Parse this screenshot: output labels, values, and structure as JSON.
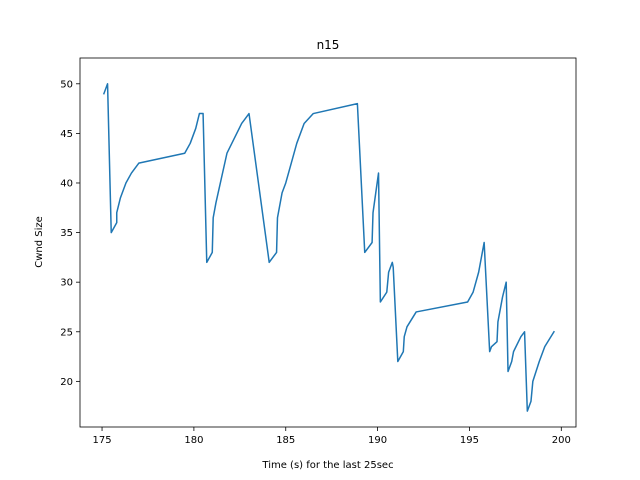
{
  "chart_data": {
    "type": "line",
    "title": "n15",
    "xlabel": "Time (s) for the last 25sec",
    "ylabel": "Cwnd Size",
    "xlim": [
      173.8,
      200.8
    ],
    "ylim": [
      15.4,
      52.6
    ],
    "xticks": [
      175,
      180,
      185,
      190,
      195,
      200
    ],
    "yticks": [
      20,
      25,
      30,
      35,
      40,
      45,
      50
    ],
    "grid": false,
    "series": [
      {
        "color": "#1f77b4",
        "x": [
          175.1,
          175.3,
          175.5,
          175.8,
          175.8,
          176.0,
          176.3,
          176.6,
          177.0,
          179.5,
          179.8,
          180.1,
          180.3,
          180.5,
          180.7,
          181.0,
          181.05,
          181.2,
          181.5,
          181.8,
          182.2,
          182.6,
          182.8,
          183.0,
          184.1,
          184.5,
          184.55,
          184.6,
          184.8,
          185.0,
          185.3,
          185.6,
          186.0,
          186.5,
          188.9,
          189.3,
          189.7,
          189.75,
          189.9,
          190.05,
          190.15,
          190.5,
          190.6,
          190.8,
          190.85,
          191.1,
          191.4,
          191.45,
          191.6,
          192.1,
          194.9,
          195.2,
          195.5,
          195.8,
          196.1,
          196.2,
          196.5,
          196.55,
          196.8,
          197.0,
          197.1,
          197.3,
          197.4,
          197.8,
          198.0,
          198.15,
          198.35,
          198.45,
          198.8,
          199.1,
          199.6
        ],
        "y": [
          49,
          50,
          35,
          36,
          37,
          38.5,
          40,
          41,
          42,
          43,
          44,
          45.5,
          47,
          47,
          32,
          33,
          36.5,
          38,
          40.5,
          43,
          44.5,
          46,
          46.5,
          47,
          32,
          33,
          36.5,
          37,
          39,
          40,
          42,
          44,
          46,
          47,
          48,
          33,
          34,
          37,
          39,
          41,
          28,
          29,
          31,
          32,
          31.5,
          22,
          23,
          24.5,
          25.5,
          27,
          28,
          29,
          31,
          34,
          23,
          23.5,
          24,
          26,
          28.5,
          30,
          21,
          22,
          23,
          24.5,
          25,
          17,
          18,
          20,
          22,
          23.5,
          25
        ]
      }
    ]
  }
}
